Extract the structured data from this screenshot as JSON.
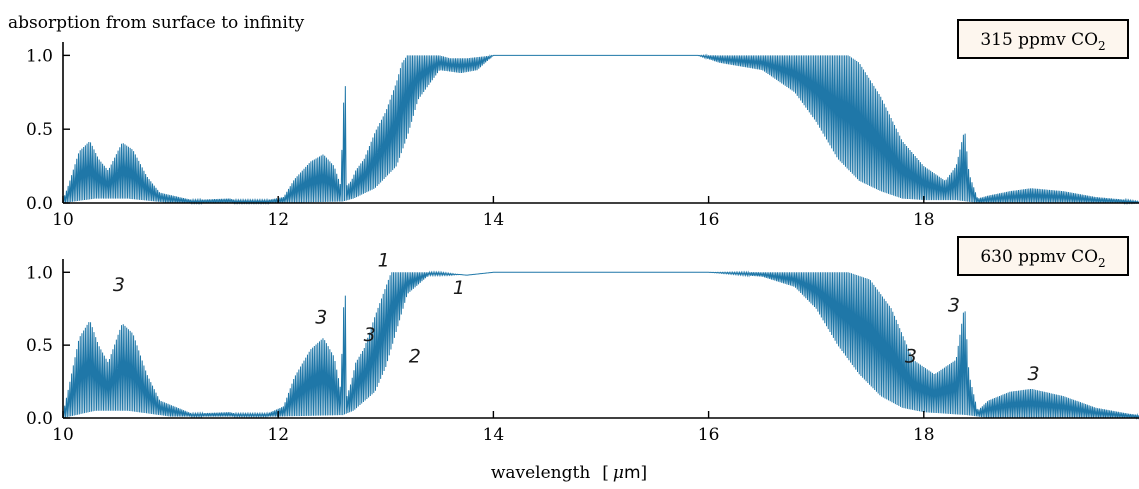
{
  "figure": {
    "title": "absorption from surface to infinity",
    "xlabel": "wavelength",
    "xlabel_unit_prefix": "μ",
    "xlabel_unit": "m",
    "line_color": "#1f77a8"
  },
  "chart_data": [
    {
      "type": "line",
      "legend": "315 ppmv CO",
      "legend_sub": "2",
      "xlim": [
        10,
        20
      ],
      "ylim": [
        0,
        1.05
      ],
      "xticks": [
        10,
        12,
        14,
        16,
        18
      ],
      "xtick_labels": [
        "10",
        "12",
        "14",
        "16",
        "18"
      ],
      "yticks": [
        0,
        0.5,
        1.0
      ],
      "ytick_labels": [
        "0.0",
        "0.5",
        "1.0"
      ],
      "annotations": [],
      "envelope_upper": {
        "x": [
          10.0,
          10.05,
          10.15,
          10.25,
          10.33,
          10.42,
          10.55,
          10.65,
          10.78,
          10.9,
          11.2,
          11.55,
          11.6,
          11.9,
          12.05,
          12.15,
          12.3,
          12.42,
          12.52,
          12.58,
          12.62,
          12.63,
          12.64,
          12.68,
          12.72,
          12.8,
          12.9,
          13.0,
          13.1,
          13.15,
          13.2,
          13.3,
          13.4,
          13.5,
          13.6,
          13.75,
          14.0,
          15.5,
          16.0,
          16.5,
          16.7,
          16.9,
          17.1,
          17.3,
          17.4,
          17.6,
          17.8,
          18.0,
          18.2,
          18.3,
          18.38,
          18.42,
          18.5,
          18.6,
          18.8,
          19.0,
          19.3,
          19.6,
          19.9,
          20.0
        ],
        "y": [
          0.02,
          0.12,
          0.35,
          0.42,
          0.3,
          0.22,
          0.41,
          0.36,
          0.18,
          0.07,
          0.02,
          0.03,
          0.02,
          0.02,
          0.04,
          0.16,
          0.28,
          0.33,
          0.25,
          0.12,
          0.92,
          0.6,
          0.12,
          0.15,
          0.22,
          0.3,
          0.48,
          0.62,
          0.82,
          0.95,
          1.0,
          1.0,
          1.0,
          1.0,
          0.98,
          0.98,
          1.0,
          1.0,
          1.0,
          1.0,
          1.0,
          1.0,
          1.0,
          1.0,
          0.95,
          0.72,
          0.42,
          0.25,
          0.15,
          0.25,
          0.5,
          0.2,
          0.03,
          0.05,
          0.08,
          0.1,
          0.08,
          0.04,
          0.02,
          0.01
        ]
      },
      "envelope_lower": {
        "x": [
          10.0,
          10.3,
          10.6,
          11.0,
          12.0,
          12.6,
          12.7,
          12.9,
          13.1,
          13.2,
          13.3,
          13.5,
          13.7,
          13.85,
          14.0,
          15.9,
          16.1,
          16.5,
          16.8,
          17.0,
          17.2,
          17.4,
          17.6,
          17.8,
          18.0,
          18.2,
          18.3,
          18.5,
          20.0
        ],
        "y": [
          0.0,
          0.03,
          0.03,
          0.0,
          0.0,
          0.01,
          0.03,
          0.1,
          0.25,
          0.45,
          0.7,
          0.9,
          0.88,
          0.9,
          1.0,
          1.0,
          0.95,
          0.9,
          0.75,
          0.55,
          0.3,
          0.15,
          0.08,
          0.03,
          0.02,
          0.02,
          0.02,
          0.0,
          0.0
        ]
      }
    },
    {
      "type": "line",
      "legend": "630 ppmv CO",
      "legend_sub": "2",
      "xlim": [
        10,
        20
      ],
      "ylim": [
        0,
        1.05
      ],
      "xticks": [
        10,
        12,
        14,
        16,
        18
      ],
      "xtick_labels": [
        "10",
        "12",
        "14",
        "16",
        "18"
      ],
      "yticks": [
        0,
        0.5,
        1.0
      ],
      "ytick_labels": [
        "0.0",
        "0.5",
        "1.0"
      ],
      "annotations": [
        {
          "text": "3",
          "x": 10.52,
          "y": 0.87
        },
        {
          "text": "3",
          "x": 12.4,
          "y": 0.65
        },
        {
          "text": "3",
          "x": 12.85,
          "y": 0.53
        },
        {
          "text": "1",
          "x": 12.98,
          "y": 1.04
        },
        {
          "text": "2",
          "x": 13.27,
          "y": 0.38
        },
        {
          "text": "1",
          "x": 13.68,
          "y": 0.85
        },
        {
          "text": "3",
          "x": 17.88,
          "y": 0.38
        },
        {
          "text": "3",
          "x": 18.28,
          "y": 0.73
        },
        {
          "text": "3",
          "x": 19.02,
          "y": 0.26
        }
      ],
      "envelope_upper": {
        "x": [
          10.0,
          10.05,
          10.15,
          10.25,
          10.33,
          10.42,
          10.55,
          10.65,
          10.78,
          10.9,
          11.2,
          11.55,
          11.6,
          11.9,
          12.05,
          12.15,
          12.3,
          12.42,
          12.52,
          12.58,
          12.62,
          12.63,
          12.64,
          12.68,
          12.72,
          12.8,
          12.9,
          13.0,
          13.05,
          13.1,
          13.3,
          13.5,
          13.75,
          14.0,
          16.0,
          16.5,
          16.7,
          16.9,
          17.1,
          17.3,
          17.5,
          17.7,
          17.9,
          18.1,
          18.3,
          18.38,
          18.42,
          18.5,
          18.6,
          18.8,
          19.0,
          19.3,
          19.6,
          19.9,
          20.0
        ],
        "y": [
          0.03,
          0.2,
          0.55,
          0.67,
          0.5,
          0.38,
          0.65,
          0.58,
          0.3,
          0.12,
          0.03,
          0.04,
          0.03,
          0.03,
          0.08,
          0.28,
          0.47,
          0.55,
          0.42,
          0.2,
          1.0,
          0.6,
          0.15,
          0.25,
          0.38,
          0.48,
          0.7,
          0.9,
          1.0,
          1.0,
          1.0,
          1.0,
          0.98,
          1.0,
          1.0,
          1.0,
          1.0,
          1.0,
          1.0,
          1.0,
          0.95,
          0.75,
          0.4,
          0.3,
          0.4,
          0.78,
          0.3,
          0.05,
          0.12,
          0.18,
          0.2,
          0.15,
          0.07,
          0.03,
          0.02
        ]
      },
      "envelope_lower": {
        "x": [
          10.0,
          10.3,
          10.6,
          11.0,
          12.0,
          12.6,
          12.7,
          12.9,
          13.0,
          13.1,
          13.2,
          13.4,
          13.6,
          14.0,
          16.0,
          16.5,
          16.8,
          17.0,
          17.2,
          17.4,
          17.6,
          17.8,
          18.0,
          18.2,
          18.4,
          18.6,
          20.0
        ],
        "y": [
          0.0,
          0.05,
          0.05,
          0.01,
          0.01,
          0.02,
          0.05,
          0.18,
          0.35,
          0.6,
          0.85,
          0.98,
          0.98,
          1.0,
          1.0,
          0.97,
          0.9,
          0.75,
          0.5,
          0.3,
          0.15,
          0.07,
          0.04,
          0.03,
          0.02,
          0.0,
          0.0
        ]
      }
    }
  ]
}
